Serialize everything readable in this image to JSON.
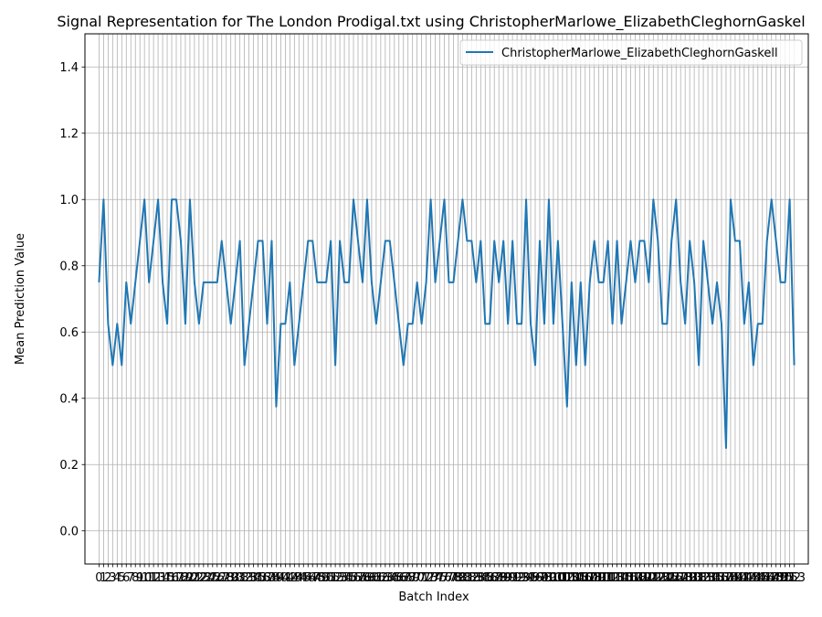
{
  "chart_data": {
    "type": "line",
    "title": "Signal Representation for The London Prodigal.txt using ChristopherMarlowe_ElizabethCleghornGaskel",
    "xlabel": "Batch Index",
    "ylabel": "Mean Prediction Value",
    "ylim": [
      -0.1,
      1.5
    ],
    "yticks": [
      0.0,
      0.2,
      0.4,
      0.6,
      0.8,
      1.0,
      1.2,
      1.4
    ],
    "grid": true,
    "legend": "top-right",
    "series": [
      {
        "name": "ChristopherMarlowe_ElizabethCleghornGaskell",
        "color": "#1f77b4",
        "x": [
          0,
          1,
          2,
          3,
          4,
          5,
          6,
          7,
          8,
          9,
          10,
          11,
          12,
          13,
          14,
          15,
          16,
          17,
          18,
          19,
          20,
          21,
          22,
          23,
          24,
          25,
          26,
          27,
          28,
          29,
          30,
          31,
          32,
          33,
          34,
          35,
          36,
          37,
          38,
          39,
          40,
          41,
          42,
          43,
          44,
          45,
          46,
          47,
          48,
          49,
          50,
          51,
          52,
          53,
          54,
          55,
          56,
          57,
          58,
          59,
          60,
          61,
          62,
          63,
          64,
          65,
          66,
          67,
          68,
          69,
          70,
          71,
          72,
          73,
          74,
          75,
          76,
          77,
          78,
          79,
          80,
          81,
          82,
          83,
          84,
          85,
          86,
          87,
          88,
          89,
          90,
          91,
          92,
          93,
          94,
          95,
          96,
          97,
          98,
          99,
          100,
          101,
          102,
          103,
          104,
          105,
          106,
          107,
          108,
          109,
          110,
          111,
          112,
          113,
          114,
          115,
          116,
          117,
          118,
          119,
          120,
          121,
          122,
          123,
          124,
          125,
          126,
          127,
          128,
          129,
          130,
          131,
          132,
          133,
          134,
          135,
          136,
          137,
          138,
          139,
          140,
          141,
          142,
          143,
          144,
          145,
          146,
          147,
          148,
          149,
          150,
          151,
          152,
          153
        ],
        "values": [
          0.75,
          1.0,
          0.625,
          0.5,
          0.625,
          0.5,
          0.75,
          0.625,
          0.75,
          0.875,
          1.0,
          0.75,
          0.875,
          1.0,
          0.75,
          0.625,
          1.0,
          1.0,
          0.875,
          0.625,
          1.0,
          0.75,
          0.625,
          0.75,
          0.75,
          0.75,
          0.75,
          0.875,
          0.75,
          0.625,
          0.75,
          0.875,
          0.5,
          0.625,
          0.75,
          0.875,
          0.875,
          0.625,
          0.875,
          0.375,
          0.625,
          0.625,
          0.75,
          0.5,
          0.625,
          0.75,
          0.875,
          0.875,
          0.75,
          0.75,
          0.75,
          0.875,
          0.5,
          0.875,
          0.75,
          0.75,
          1.0,
          0.875,
          0.75,
          1.0,
          0.75,
          0.625,
          0.75,
          0.875,
          0.875,
          0.75,
          0.625,
          0.5,
          0.625,
          0.625,
          0.75,
          0.625,
          0.75,
          1.0,
          0.75,
          0.875,
          1.0,
          0.75,
          0.75,
          0.875,
          1.0,
          0.875,
          0.875,
          0.75,
          0.875,
          0.625,
          0.625,
          0.875,
          0.75,
          0.875,
          0.625,
          0.875,
          0.625,
          0.625,
          1.0,
          0.625,
          0.5,
          0.875,
          0.625,
          1.0,
          0.625,
          0.875,
          0.625,
          0.375,
          0.75,
          0.5,
          0.75,
          0.5,
          0.75,
          0.875,
          0.75,
          0.75,
          0.875,
          0.625,
          0.875,
          0.625,
          0.75,
          0.875,
          0.75,
          0.875,
          0.875,
          0.75,
          1.0,
          0.875,
          0.625,
          0.625,
          0.875,
          1.0,
          0.75,
          0.625,
          0.875,
          0.75,
          0.5,
          0.875,
          0.75,
          0.625,
          0.75,
          0.625,
          0.25,
          1.0,
          0.875,
          0.875,
          0.625,
          0.75,
          0.5,
          0.625,
          0.625,
          0.875,
          1.0,
          0.875,
          0.75,
          0.75,
          1.0,
          0.5
        ]
      }
    ]
  }
}
